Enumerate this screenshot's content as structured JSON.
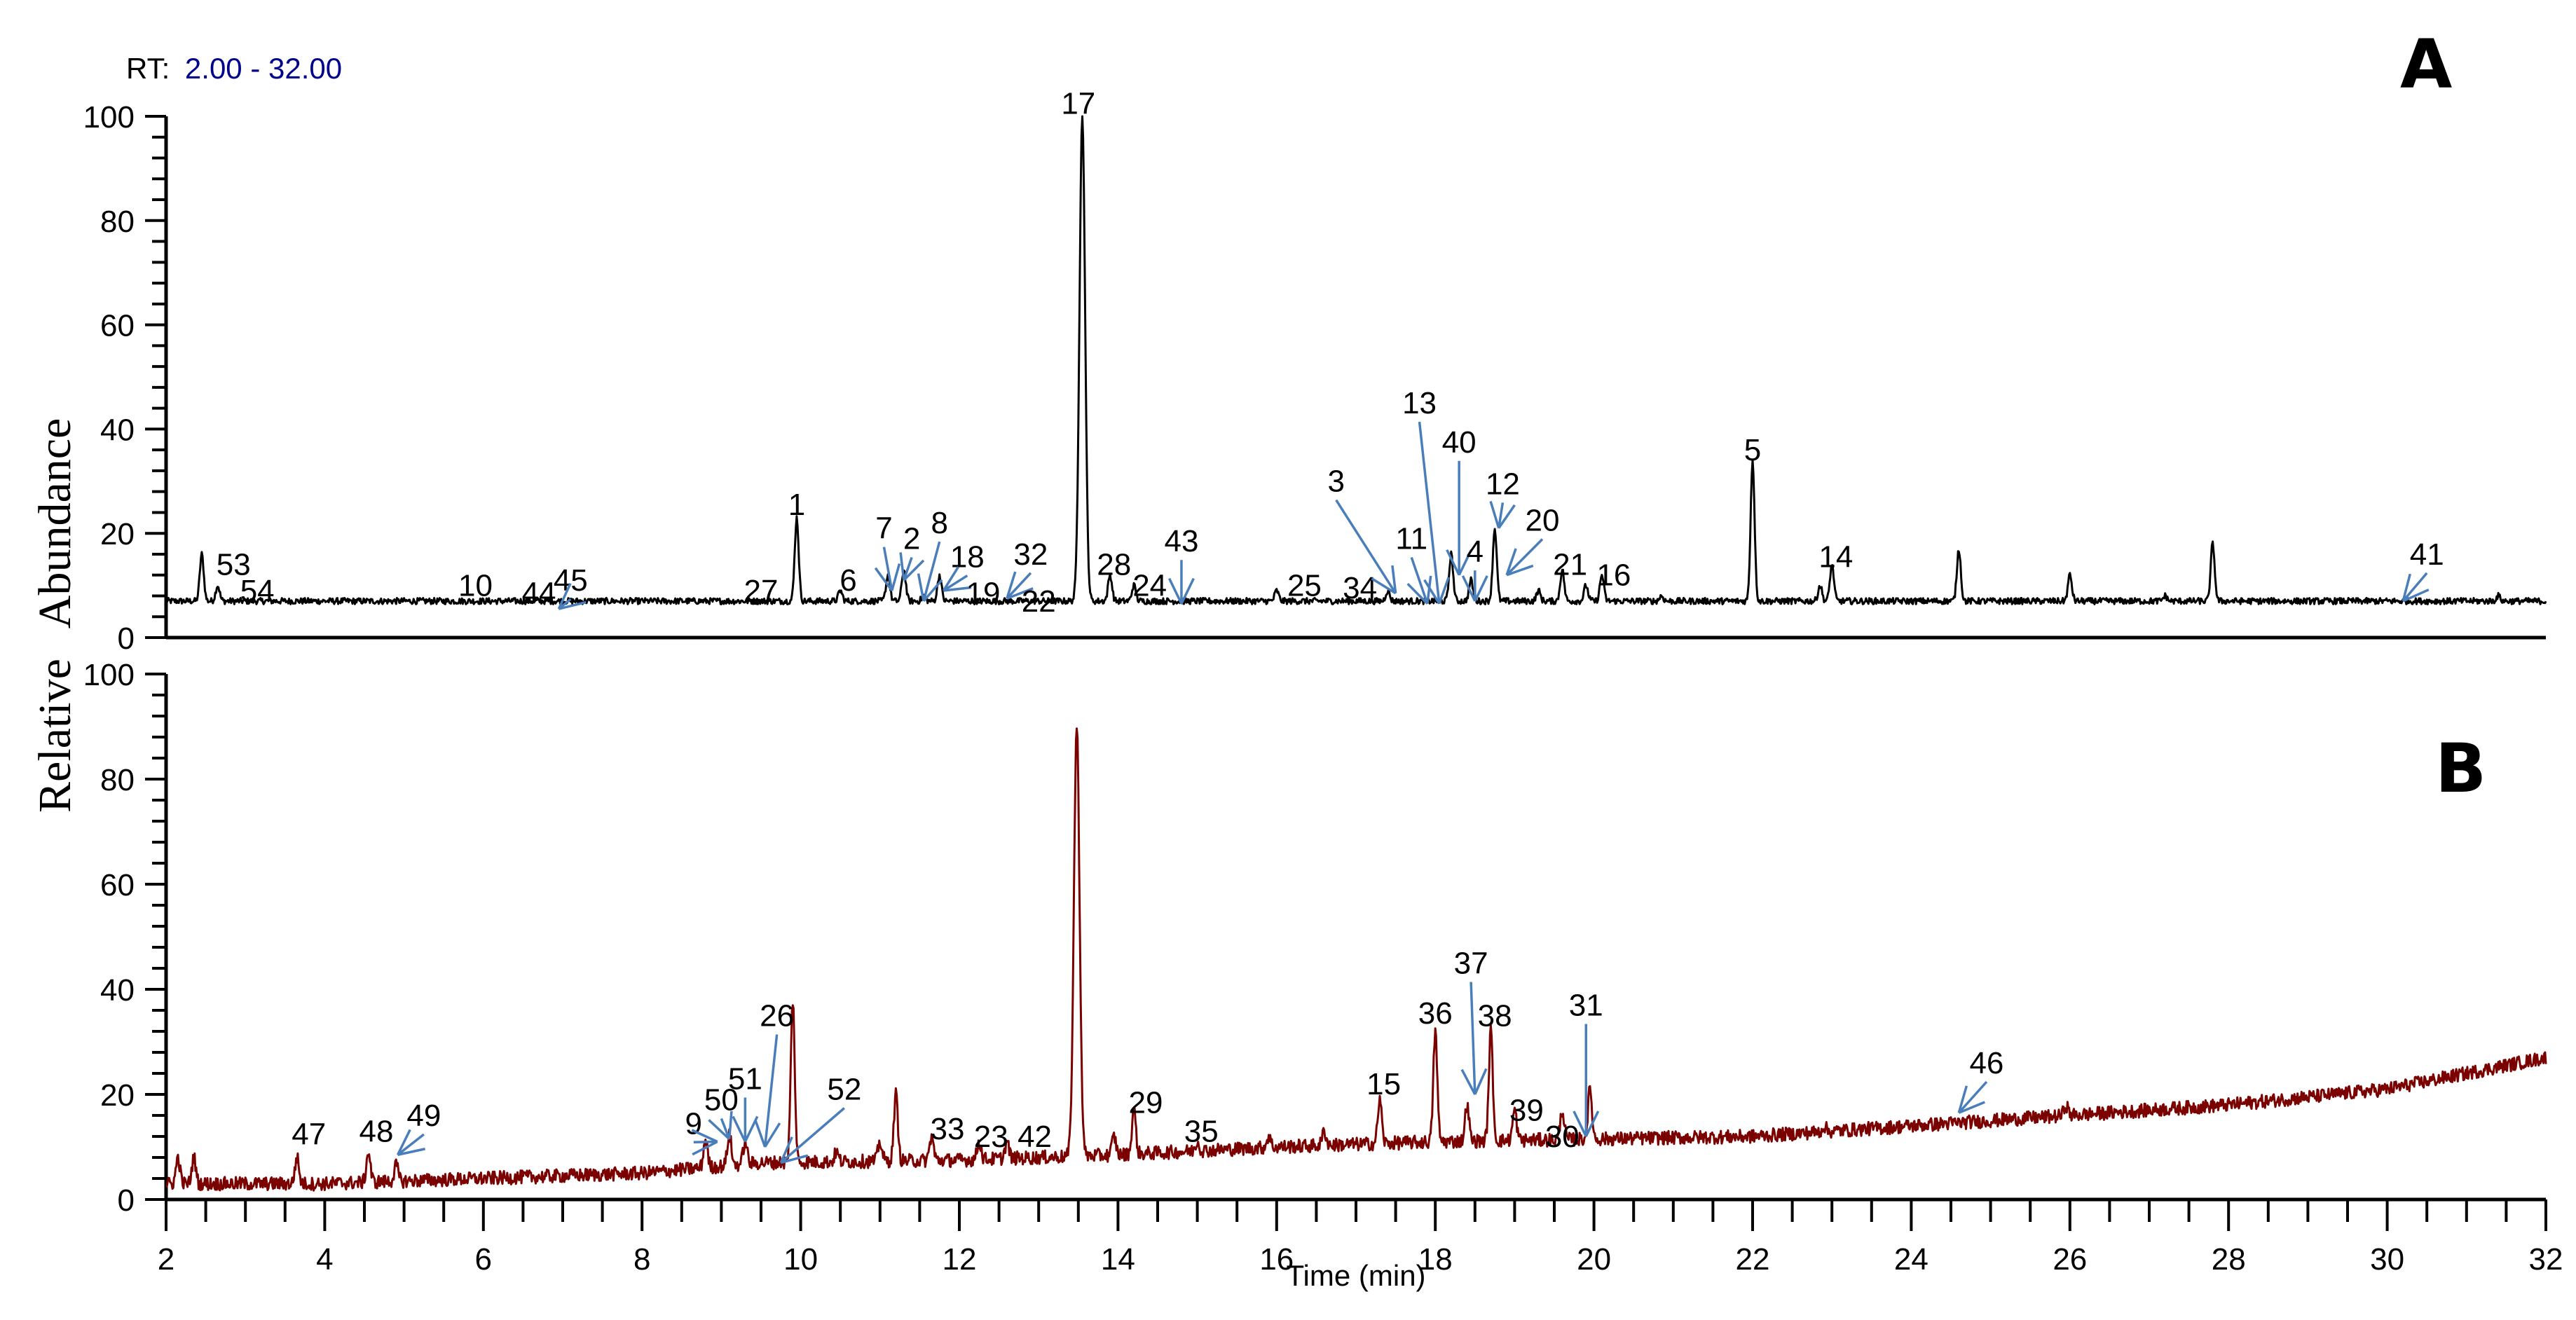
{
  "header": {
    "rt_prefix": "RT:",
    "rt_range": "2.00 - 32.00"
  },
  "panels": {
    "a_label": "A",
    "b_label": "B"
  },
  "axes": {
    "ylabel_part1": "Relative",
    "ylabel_part2": "Abundance",
    "xlabel": "Time (min)",
    "x_ticks": [
      "2",
      "4",
      "6",
      "8",
      "10",
      "12",
      "14",
      "16",
      "18",
      "20",
      "22",
      "24",
      "26",
      "28",
      "30",
      "32"
    ],
    "y_ticks": [
      "0",
      "20",
      "40",
      "60",
      "80",
      "100"
    ]
  },
  "colors": {
    "trace_a": "#000000",
    "trace_b": "#7b0000",
    "arrow": "#4a7ebb",
    "rt_range": "#00008b"
  },
  "chart_data": [
    {
      "type": "line",
      "title": "A",
      "xlabel": "Time (min)",
      "ylabel": "Relative Abundance",
      "xlim": [
        2,
        32
      ],
      "ylim": [
        0,
        100
      ],
      "baseline": 7,
      "peaks": [
        {
          "t": 2.45,
          "h": 16
        },
        {
          "t": 2.65,
          "h": 10
        },
        {
          "t": 9.95,
          "h": 23
        },
        {
          "t": 10.5,
          "h": 9
        },
        {
          "t": 11.1,
          "h": 12
        },
        {
          "t": 11.3,
          "h": 13
        },
        {
          "t": 11.55,
          "h": 8
        },
        {
          "t": 11.75,
          "h": 12
        },
        {
          "t": 13.55,
          "h": 100
        },
        {
          "t": 13.9,
          "h": 12
        },
        {
          "t": 14.2,
          "h": 10
        },
        {
          "t": 16.0,
          "h": 9
        },
        {
          "t": 17.4,
          "h": 9
        },
        {
          "t": 18.2,
          "h": 16
        },
        {
          "t": 18.45,
          "h": 11
        },
        {
          "t": 18.75,
          "h": 21
        },
        {
          "t": 19.3,
          "h": 9
        },
        {
          "t": 19.6,
          "h": 13
        },
        {
          "t": 19.9,
          "h": 10
        },
        {
          "t": 20.1,
          "h": 12
        },
        {
          "t": 20.85,
          "h": 8
        },
        {
          "t": 22.0,
          "h": 34
        },
        {
          "t": 22.85,
          "h": 10
        },
        {
          "t": 23.0,
          "h": 14
        },
        {
          "t": 24.6,
          "h": 17
        },
        {
          "t": 26.0,
          "h": 12
        },
        {
          "t": 27.2,
          "h": 8
        },
        {
          "t": 27.8,
          "h": 18
        },
        {
          "t": 31.4,
          "h": 8
        }
      ],
      "annotations": [
        {
          "label": "53",
          "t": 2.85,
          "v": 12,
          "arrow": false
        },
        {
          "label": "54",
          "t": 3.15,
          "v": 7,
          "arrow": false
        },
        {
          "label": "10",
          "t": 5.9,
          "v": 8,
          "arrow": false
        },
        {
          "label": "44",
          "t": 6.7,
          "v": 6.5,
          "arrow": false
        },
        {
          "label": "45",
          "t": 7.1,
          "v": 9,
          "arrow": true,
          "to_t": 6.95,
          "to_v": 5.5
        },
        {
          "label": "27",
          "t": 9.5,
          "v": 7,
          "arrow": false
        },
        {
          "label": "1",
          "t": 9.95,
          "v": 23.5,
          "arrow": false
        },
        {
          "label": "6",
          "t": 10.6,
          "v": 9,
          "arrow": false
        },
        {
          "label": "7",
          "t": 11.05,
          "v": 19,
          "arrow": true,
          "to_t": 11.15,
          "to_v": 9
        },
        {
          "label": "2",
          "t": 11.4,
          "v": 17,
          "arrow": true,
          "to_t": 11.3,
          "to_v": 11
        },
        {
          "label": "8",
          "t": 11.75,
          "v": 20,
          "arrow": true,
          "to_t": 11.55,
          "to_v": 7
        },
        {
          "label": "18",
          "t": 12.1,
          "v": 13.5,
          "arrow": true,
          "to_t": 11.8,
          "to_v": 9
        },
        {
          "label": "19",
          "t": 12.3,
          "v": 6.5,
          "arrow": false
        },
        {
          "label": "32",
          "t": 12.9,
          "v": 14,
          "arrow": true,
          "to_t": 12.6,
          "to_v": 7.5
        },
        {
          "label": "22",
          "t": 13.0,
          "v": 5,
          "arrow": false
        },
        {
          "label": "17",
          "t": 13.5,
          "v": 100.5,
          "arrow": false
        },
        {
          "label": "28",
          "t": 13.95,
          "v": 12,
          "arrow": false
        },
        {
          "label": "24",
          "t": 14.4,
          "v": 8,
          "arrow": false
        },
        {
          "label": "43",
          "t": 14.8,
          "v": 16.5,
          "arrow": true,
          "to_t": 14.8,
          "to_v": 6.5
        },
        {
          "label": "25",
          "t": 16.35,
          "v": 8,
          "arrow": false
        },
        {
          "label": "34",
          "t": 17.05,
          "v": 7.5,
          "arrow": false
        },
        {
          "label": "3",
          "t": 16.75,
          "v": 28,
          "arrow": true,
          "to_t": 17.5,
          "to_v": 8.5
        },
        {
          "label": "11",
          "t": 17.7,
          "v": 17,
          "arrow": true,
          "to_t": 17.9,
          "to_v": 6.5
        },
        {
          "label": "13",
          "t": 17.8,
          "v": 43,
          "arrow": true,
          "to_t": 18.05,
          "to_v": 6.5
        },
        {
          "label": "40",
          "t": 18.3,
          "v": 35.5,
          "arrow": true,
          "to_t": 18.3,
          "to_v": 12
        },
        {
          "label": "4",
          "t": 18.5,
          "v": 14.5,
          "arrow": true,
          "to_t": 18.5,
          "to_v": 7
        },
        {
          "label": "12",
          "t": 18.85,
          "v": 27.5,
          "arrow": true,
          "to_t": 18.8,
          "to_v": 21
        },
        {
          "label": "20",
          "t": 19.35,
          "v": 20.5,
          "arrow": true,
          "to_t": 18.9,
          "to_v": 12
        },
        {
          "label": "21",
          "t": 19.7,
          "v": 12,
          "arrow": false
        },
        {
          "label": "16",
          "t": 20.25,
          "v": 10,
          "arrow": false
        },
        {
          "label": "5",
          "t": 22.0,
          "v": 34,
          "arrow": false
        },
        {
          "label": "14",
          "t": 23.05,
          "v": 13.5,
          "arrow": false
        },
        {
          "label": "41",
          "t": 30.5,
          "v": 14,
          "arrow": true,
          "to_t": 30.2,
          "to_v": 7
        }
      ]
    },
    {
      "type": "line",
      "title": "B",
      "xlabel": "Time (min)",
      "ylabel": "Relative Abundance",
      "xlim": [
        2,
        32
      ],
      "ylim": [
        0,
        100
      ],
      "baseline_points": [
        [
          2,
          3
        ],
        [
          4,
          3
        ],
        [
          6,
          4
        ],
        [
          8,
          5
        ],
        [
          9.5,
          7
        ],
        [
          12,
          7.5
        ],
        [
          14,
          8.5
        ],
        [
          16,
          10
        ],
        [
          18,
          11
        ],
        [
          20,
          11.5
        ],
        [
          22,
          12
        ],
        [
          24,
          14
        ],
        [
          26,
          16
        ],
        [
          28,
          18
        ],
        [
          30,
          21
        ],
        [
          31,
          24
        ],
        [
          32,
          27
        ]
      ],
      "peaks": [
        {
          "t": 2.15,
          "h": 8
        },
        {
          "t": 2.35,
          "h": 8
        },
        {
          "t": 3.65,
          "h": 8
        },
        {
          "t": 4.55,
          "h": 9
        },
        {
          "t": 4.9,
          "h": 6.5
        },
        {
          "t": 8.8,
          "h": 11.5
        },
        {
          "t": 9.1,
          "h": 12.5
        },
        {
          "t": 9.3,
          "h": 11
        },
        {
          "t": 9.9,
          "h": 38
        },
        {
          "t": 10.45,
          "h": 9
        },
        {
          "t": 11.0,
          "h": 11
        },
        {
          "t": 11.2,
          "h": 20
        },
        {
          "t": 11.65,
          "h": 12
        },
        {
          "t": 12.25,
          "h": 11
        },
        {
          "t": 12.6,
          "h": 11
        },
        {
          "t": 13.48,
          "h": 90
        },
        {
          "t": 13.95,
          "h": 12
        },
        {
          "t": 14.2,
          "h": 17
        },
        {
          "t": 15.0,
          "h": 11
        },
        {
          "t": 15.9,
          "h": 12
        },
        {
          "t": 16.6,
          "h": 13
        },
        {
          "t": 17.3,
          "h": 19
        },
        {
          "t": 18.0,
          "h": 32
        },
        {
          "t": 18.4,
          "h": 18
        },
        {
          "t": 18.7,
          "h": 32
        },
        {
          "t": 19.0,
          "h": 17
        },
        {
          "t": 19.6,
          "h": 17
        },
        {
          "t": 19.95,
          "h": 21
        },
        {
          "t": 22.9,
          "h": 14
        },
        {
          "t": 25.95,
          "h": 18
        }
      ],
      "annotations": [
        {
          "label": "47",
          "t": 3.8,
          "v": 10.5,
          "arrow": false
        },
        {
          "label": "48",
          "t": 4.65,
          "v": 11,
          "arrow": false
        },
        {
          "label": "49",
          "t": 5.25,
          "v": 14,
          "arrow": true,
          "to_t": 4.92,
          "to_v": 8.5
        },
        {
          "label": "9",
          "t": 8.65,
          "v": 12.5,
          "arrow": true,
          "to_t": 8.95,
          "to_v": 11
        },
        {
          "label": "50",
          "t": 9.0,
          "v": 17,
          "arrow": true,
          "to_t": 9.1,
          "to_v": 11.5
        },
        {
          "label": "51",
          "t": 9.3,
          "v": 21,
          "arrow": true,
          "to_t": 9.3,
          "to_v": 11
        },
        {
          "label": "26",
          "t": 9.7,
          "v": 33,
          "arrow": true,
          "to_t": 9.55,
          "to_v": 10
        },
        {
          "label": "52",
          "t": 10.55,
          "v": 19,
          "arrow": true,
          "to_t": 9.75,
          "to_v": 7
        },
        {
          "label": "33",
          "t": 11.85,
          "v": 11.5,
          "arrow": false
        },
        {
          "label": "23",
          "t": 12.4,
          "v": 10,
          "arrow": false
        },
        {
          "label": "42",
          "t": 12.95,
          "v": 10,
          "arrow": false
        },
        {
          "label": "29",
          "t": 14.35,
          "v": 16.5,
          "arrow": false
        },
        {
          "label": "35",
          "t": 15.05,
          "v": 11,
          "arrow": false
        },
        {
          "label": "15",
          "t": 17.35,
          "v": 20,
          "arrow": false
        },
        {
          "label": "36",
          "t": 18.0,
          "v": 33.5,
          "arrow": false
        },
        {
          "label": "37",
          "t": 18.45,
          "v": 43,
          "arrow": true,
          "to_t": 18.5,
          "to_v": 20
        },
        {
          "label": "38",
          "t": 18.75,
          "v": 33,
          "arrow": false
        },
        {
          "label": "39",
          "t": 19.15,
          "v": 15,
          "arrow": false
        },
        {
          "label": "30",
          "t": 19.6,
          "v": 10,
          "arrow": false
        },
        {
          "label": "31",
          "t": 19.9,
          "v": 35,
          "arrow": true,
          "to_t": 19.9,
          "to_v": 12
        },
        {
          "label": "46",
          "t": 24.95,
          "v": 24,
          "arrow": true,
          "to_t": 24.6,
          "to_v": 16.5
        }
      ]
    }
  ]
}
